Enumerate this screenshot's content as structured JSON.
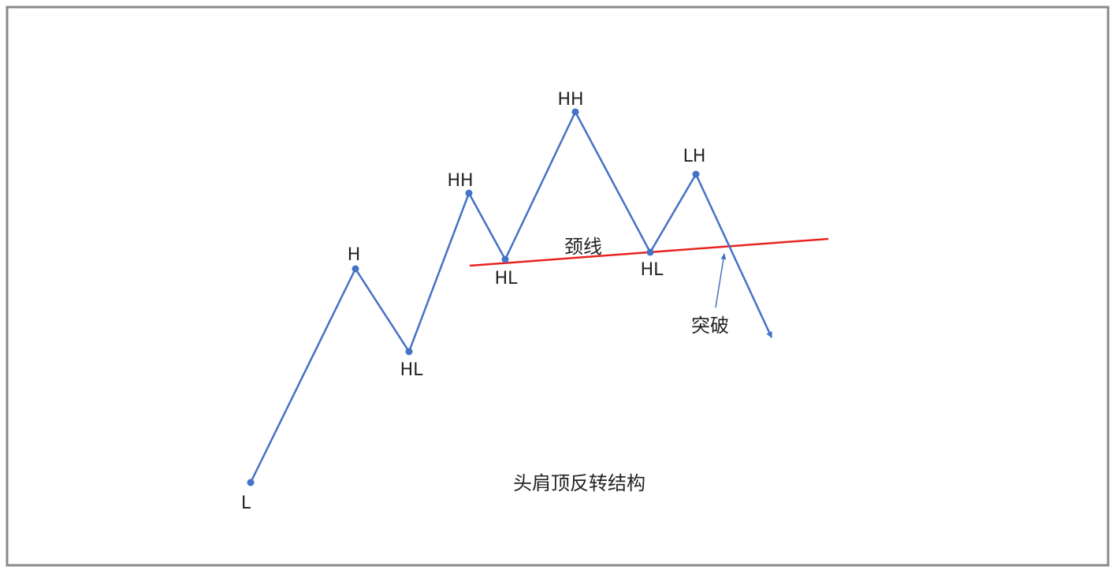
{
  "colors": {
    "border": "#8a8a8a",
    "zigzag": "#4472c4",
    "neckline": "#e8231f",
    "text": "#222222"
  },
  "points": [
    {
      "label": "L"
    },
    {
      "label": "H"
    },
    {
      "label": "HL"
    },
    {
      "label": "HH"
    },
    {
      "label": "HL"
    },
    {
      "label": "HH"
    },
    {
      "label": "HL"
    },
    {
      "label": "LH"
    }
  ],
  "labels": {
    "neckline": "颈线",
    "breakout": "突破",
    "caption": "头肩顶反转结构"
  }
}
